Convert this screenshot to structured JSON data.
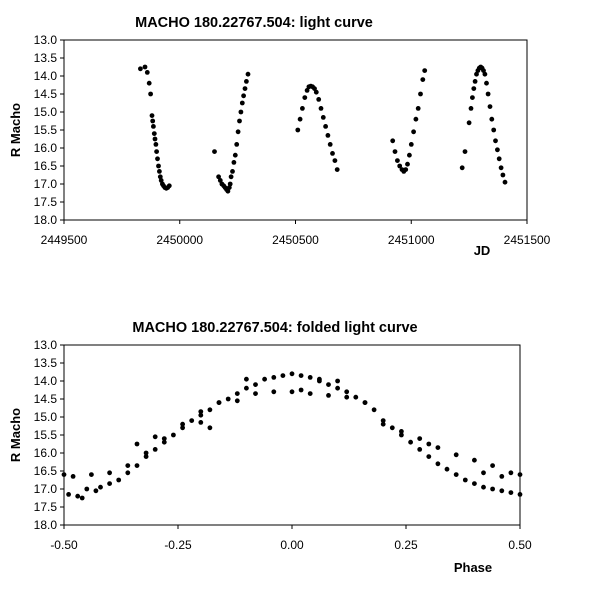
{
  "chart_data": [
    {
      "type": "scatter",
      "title": "MACHO 180.22767.504: light curve",
      "xlabel": "JD",
      "ylabel": "R Macho",
      "xlim": [
        2449500,
        2451500
      ],
      "ylim": [
        13.0,
        18.0
      ],
      "y_inverted": true,
      "grid": false,
      "legend": "none",
      "xticks": [
        "2449500",
        "2450000",
        "2450500",
        "2451000",
        "2451500"
      ],
      "yticks": [
        "13.0",
        "13.5",
        "14.0",
        "14.5",
        "15.0",
        "15.5",
        "16.0",
        "16.5",
        "17.0",
        "17.5",
        "18.0"
      ],
      "marker_color": "#000000",
      "series": [
        {
          "points": [
            [
              2449830,
              13.8
            ],
            [
              2449850,
              13.75
            ],
            [
              2449860,
              13.9
            ],
            [
              2449868,
              14.2
            ],
            [
              2449874,
              14.5
            ],
            [
              2449880,
              15.1
            ],
            [
              2449883,
              15.25
            ],
            [
              2449886,
              15.4
            ],
            [
              2449890,
              15.6
            ],
            [
              2449893,
              15.75
            ],
            [
              2449897,
              15.9
            ],
            [
              2449900,
              16.1
            ],
            [
              2449904,
              16.3
            ],
            [
              2449908,
              16.5
            ],
            [
              2449912,
              16.65
            ],
            [
              2449916,
              16.8
            ],
            [
              2449920,
              16.9
            ],
            [
              2449925,
              17.0
            ],
            [
              2449930,
              17.05
            ],
            [
              2449936,
              17.1
            ],
            [
              2449942,
              17.12
            ],
            [
              2449948,
              17.1
            ],
            [
              2449955,
              17.05
            ],
            [
              2450150,
              16.1
            ],
            [
              2450168,
              16.8
            ],
            [
              2450175,
              16.9
            ],
            [
              2450182,
              17.0
            ],
            [
              2450190,
              17.05
            ],
            [
              2450196,
              17.1
            ],
            [
              2450202,
              17.15
            ],
            [
              2450208,
              17.2
            ],
            [
              2450214,
              17.1
            ],
            [
              2450218,
              17.0
            ],
            [
              2450222,
              16.8
            ],
            [
              2450228,
              16.65
            ],
            [
              2450234,
              16.4
            ],
            [
              2450240,
              16.2
            ],
            [
              2450246,
              15.9
            ],
            [
              2450252,
              15.55
            ],
            [
              2450258,
              15.25
            ],
            [
              2450264,
              15.0
            ],
            [
              2450270,
              14.75
            ],
            [
              2450276,
              14.55
            ],
            [
              2450282,
              14.35
            ],
            [
              2450288,
              14.15
            ],
            [
              2450295,
              13.95
            ],
            [
              2450510,
              15.5
            ],
            [
              2450520,
              15.2
            ],
            [
              2450530,
              14.9
            ],
            [
              2450540,
              14.6
            ],
            [
              2450550,
              14.4
            ],
            [
              2450558,
              14.3
            ],
            [
              2450566,
              14.28
            ],
            [
              2450574,
              14.3
            ],
            [
              2450582,
              14.35
            ],
            [
              2450590,
              14.45
            ],
            [
              2450600,
              14.65
            ],
            [
              2450610,
              14.9
            ],
            [
              2450620,
              15.15
            ],
            [
              2450630,
              15.4
            ],
            [
              2450640,
              15.65
            ],
            [
              2450650,
              15.9
            ],
            [
              2450660,
              16.15
            ],
            [
              2450670,
              16.35
            ],
            [
              2450680,
              16.6
            ],
            [
              2450920,
              15.8
            ],
            [
              2450930,
              16.1
            ],
            [
              2450940,
              16.35
            ],
            [
              2450950,
              16.5
            ],
            [
              2450960,
              16.6
            ],
            [
              2450968,
              16.65
            ],
            [
              2450976,
              16.6
            ],
            [
              2450984,
              16.45
            ],
            [
              2450992,
              16.2
            ],
            [
              2451000,
              15.9
            ],
            [
              2451010,
              15.55
            ],
            [
              2451020,
              15.2
            ],
            [
              2451030,
              14.9
            ],
            [
              2451040,
              14.5
            ],
            [
              2451050,
              14.1
            ],
            [
              2451058,
              13.85
            ],
            [
              2451220,
              16.55
            ],
            [
              2451232,
              16.1
            ],
            [
              2451250,
              15.3
            ],
            [
              2451258,
              14.9
            ],
            [
              2451264,
              14.6
            ],
            [
              2451270,
              14.35
            ],
            [
              2451276,
              14.15
            ],
            [
              2451282,
              13.95
            ],
            [
              2451288,
              13.85
            ],
            [
              2451294,
              13.78
            ],
            [
              2451300,
              13.75
            ],
            [
              2451306,
              13.78
            ],
            [
              2451312,
              13.85
            ],
            [
              2451318,
              13.95
            ],
            [
              2451325,
              14.2
            ],
            [
              2451332,
              14.5
            ],
            [
              2451340,
              14.85
            ],
            [
              2451348,
              15.2
            ],
            [
              2451356,
              15.5
            ],
            [
              2451364,
              15.8
            ],
            [
              2451372,
              16.05
            ],
            [
              2451380,
              16.3
            ],
            [
              2451388,
              16.55
            ],
            [
              2451396,
              16.75
            ],
            [
              2451405,
              16.95
            ]
          ]
        }
      ]
    },
    {
      "type": "scatter",
      "title": "MACHO 180.22767.504: folded light curve",
      "xlabel": "Phase",
      "ylabel": "R Macho",
      "xlim": [
        -0.5,
        0.5
      ],
      "ylim": [
        13.0,
        18.0
      ],
      "y_inverted": true,
      "grid": false,
      "legend": "none",
      "xticks": [
        "-0.50",
        "-0.25",
        "0.00",
        "0.25",
        "0.50"
      ],
      "yticks": [
        "13.0",
        "13.5",
        "14.0",
        "14.5",
        "15.0",
        "15.5",
        "16.0",
        "16.5",
        "17.0",
        "17.5",
        "18.0"
      ],
      "marker_color": "#000000",
      "series": [
        {
          "points": [
            [
              -0.5,
              16.6
            ],
            [
              -0.49,
              17.15
            ],
            [
              -0.47,
              17.2
            ],
            [
              -0.46,
              17.25
            ],
            [
              -0.45,
              17.0
            ],
            [
              -0.43,
              17.05
            ],
            [
              -0.42,
              16.95
            ],
            [
              -0.4,
              16.85
            ],
            [
              -0.38,
              16.75
            ],
            [
              -0.36,
              16.55
            ],
            [
              -0.34,
              16.35
            ],
            [
              -0.32,
              16.1
            ],
            [
              -0.3,
              15.9
            ],
            [
              -0.28,
              15.7
            ],
            [
              -0.26,
              15.5
            ],
            [
              -0.24,
              15.3
            ],
            [
              -0.22,
              15.1
            ],
            [
              -0.2,
              14.95
            ],
            [
              -0.18,
              14.8
            ],
            [
              -0.16,
              14.6
            ],
            [
              -0.14,
              14.5
            ],
            [
              -0.12,
              14.35
            ],
            [
              -0.1,
              14.2
            ],
            [
              -0.08,
              14.1
            ],
            [
              -0.06,
              13.95
            ],
            [
              -0.04,
              13.9
            ],
            [
              -0.02,
              13.85
            ],
            [
              0.0,
              13.8
            ],
            [
              0.02,
              13.85
            ],
            [
              0.04,
              13.9
            ],
            [
              0.06,
              14.0
            ],
            [
              0.08,
              14.1
            ],
            [
              0.1,
              14.2
            ],
            [
              0.12,
              14.3
            ],
            [
              0.14,
              14.45
            ],
            [
              0.16,
              14.6
            ],
            [
              0.18,
              14.8
            ],
            [
              0.2,
              15.1
            ],
            [
              0.22,
              15.3
            ],
            [
              0.24,
              15.5
            ],
            [
              0.26,
              15.7
            ],
            [
              0.28,
              15.9
            ],
            [
              0.3,
              16.1
            ],
            [
              0.32,
              16.3
            ],
            [
              0.34,
              16.45
            ],
            [
              0.36,
              16.6
            ],
            [
              0.38,
              16.75
            ],
            [
              0.4,
              16.85
            ],
            [
              0.42,
              16.95
            ],
            [
              0.44,
              17.0
            ],
            [
              0.46,
              17.05
            ],
            [
              0.48,
              17.1
            ],
            [
              0.5,
              17.15
            ],
            [
              -0.48,
              16.65
            ],
            [
              -0.44,
              16.6
            ],
            [
              -0.4,
              16.55
            ],
            [
              -0.36,
              16.35
            ],
            [
              -0.32,
              16.0
            ],
            [
              -0.28,
              15.6
            ],
            [
              -0.24,
              15.2
            ],
            [
              -0.2,
              14.85
            ],
            [
              -0.16,
              14.6
            ],
            [
              -0.12,
              14.55
            ],
            [
              -0.08,
              14.35
            ],
            [
              -0.04,
              14.3
            ],
            [
              0.0,
              14.3
            ],
            [
              0.04,
              14.35
            ],
            [
              0.08,
              14.4
            ],
            [
              0.12,
              14.45
            ],
            [
              0.16,
              14.6
            ],
            [
              0.2,
              15.2
            ],
            [
              0.24,
              15.4
            ],
            [
              0.28,
              15.6
            ],
            [
              0.32,
              15.85
            ],
            [
              0.36,
              16.05
            ],
            [
              0.4,
              16.2
            ],
            [
              0.44,
              16.35
            ],
            [
              0.48,
              16.55
            ],
            [
              0.5,
              16.6
            ],
            [
              -0.2,
              15.15
            ],
            [
              -0.18,
              15.3
            ],
            [
              -0.3,
              15.55
            ],
            [
              -0.34,
              15.75
            ],
            [
              0.02,
              14.25
            ],
            [
              0.06,
              13.95
            ],
            [
              0.3,
              15.75
            ],
            [
              0.42,
              16.55
            ],
            [
              0.46,
              16.65
            ],
            [
              -0.1,
              13.95
            ],
            [
              0.1,
              14.0
            ]
          ]
        }
      ]
    }
  ]
}
